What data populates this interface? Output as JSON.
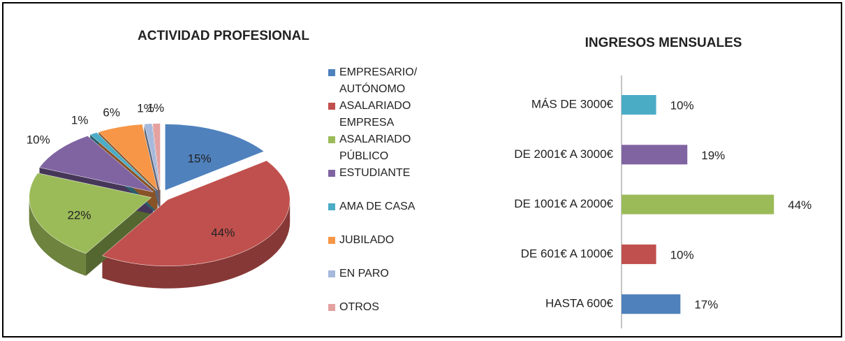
{
  "chart_data": [
    {
      "type": "pie",
      "title": "ACTIVIDAD PROFESIONAL",
      "categories": [
        "EMPRESARIO/ AUTÓNOMO",
        "ASALARIADO EMPRESA",
        "ASALARIADO PÚBLICO",
        "ESTUDIANTE",
        "AMA DE CASA",
        "JUBILADO",
        "EN PARO",
        "OTROS"
      ],
      "values": [
        15,
        44,
        22,
        10,
        1,
        6,
        1,
        1
      ],
      "value_labels": [
        "15%",
        "44%",
        "22%",
        "10%",
        "1%",
        "6%",
        "1%",
        "1%"
      ],
      "colors": [
        "#4f81bd",
        "#c0504d",
        "#9bbb59",
        "#8064a2",
        "#4bacc6",
        "#f79646",
        "#a6b9dd",
        "#e4a1a0"
      ],
      "legend": "right"
    },
    {
      "type": "bar",
      "orientation": "horizontal",
      "title": "INGRESOS MENSUALES",
      "categories": [
        "MÁS DE 3000€",
        "DE 2001€ A 3000€",
        "DE 1001€ A 2000€",
        "DE 601€ A 1000€",
        "HASTA 600€"
      ],
      "values": [
        10,
        19,
        44,
        10,
        17
      ],
      "value_labels": [
        "10%",
        "19%",
        "44%",
        "10%",
        "17%"
      ],
      "colors": [
        "#4bacc6",
        "#8064a2",
        "#9bbb59",
        "#c0504d",
        "#4f81bd"
      ],
      "xlim": [
        0,
        50
      ]
    }
  ]
}
